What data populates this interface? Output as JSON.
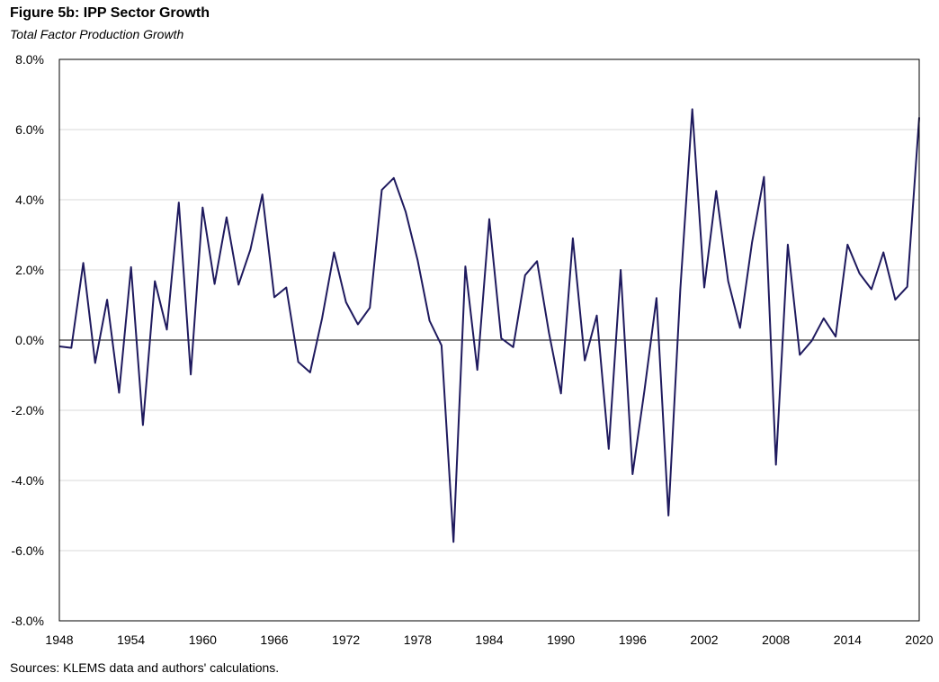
{
  "chart_data": {
    "type": "line",
    "title": "Figure 5b: IPP Sector Growth",
    "subtitle": "Total Factor Production Growth",
    "source": "Sources: KLEMS data and authors' calculations.",
    "xlim": [
      1948,
      2020
    ],
    "ylim": [
      -8.0,
      8.0
    ],
    "y_ticks": [
      8.0,
      6.0,
      4.0,
      2.0,
      0.0,
      -2.0,
      -4.0,
      -6.0,
      -8.0
    ],
    "y_tick_labels": [
      "8.0%",
      "6.0%",
      "4.0%",
      "2.0%",
      "0.0%",
      "-2.0%",
      "-4.0%",
      "-6.0%",
      "-8.0%"
    ],
    "x_ticks": [
      1948,
      1954,
      1960,
      1966,
      1972,
      1978,
      1984,
      1990,
      1996,
      2002,
      2008,
      2014,
      2020
    ],
    "x_tick_labels": [
      "1948",
      "1954",
      "1960",
      "1966",
      "1972",
      "1978",
      "1984",
      "1990",
      "1996",
      "2002",
      "2008",
      "2014",
      "2020"
    ],
    "grid": true,
    "line_color": "#1f1a5e",
    "series": [
      {
        "x": [
          1948,
          1949,
          1950,
          1951,
          1952,
          1953,
          1954,
          1955,
          1956,
          1957,
          1958,
          1959,
          1960,
          1961,
          1962,
          1963,
          1964,
          1965,
          1966,
          1967,
          1968,
          1969,
          1970,
          1971,
          1972,
          1973,
          1974,
          1975,
          1976,
          1977,
          1978,
          1979,
          1980,
          1981,
          1982,
          1983,
          1984,
          1985,
          1986,
          1987,
          1988,
          1989,
          1990,
          1991,
          1992,
          1993,
          1994,
          1995,
          1996,
          1997,
          1998,
          1999,
          2000,
          2001,
          2002,
          2003,
          2004,
          2005,
          2006,
          2007,
          2008,
          2009,
          2010,
          2011,
          2012,
          2013,
          2014,
          2015,
          2016,
          2017,
          2018,
          2019,
          2020
        ],
        "values": [
          -0.18,
          -0.22,
          2.2,
          -0.65,
          1.15,
          -1.5,
          2.08,
          -2.42,
          1.68,
          0.3,
          3.92,
          -0.98,
          3.78,
          1.6,
          3.5,
          1.58,
          2.58,
          4.15,
          1.22,
          1.5,
          -0.62,
          -0.92,
          0.62,
          2.5,
          1.08,
          0.45,
          0.92,
          4.28,
          4.62,
          3.65,
          2.28,
          0.55,
          -0.15,
          -5.75,
          2.1,
          -0.85,
          3.45,
          0.05,
          -0.2,
          1.85,
          2.25,
          0.2,
          -1.52,
          2.9,
          -0.58,
          0.7,
          -3.1,
          2.0,
          -3.82,
          -1.42,
          1.2,
          -5.0,
          1.45,
          6.58,
          1.5,
          4.25,
          1.68,
          0.35,
          2.78,
          4.65,
          -3.55,
          2.72,
          -0.42,
          -0.02,
          0.62,
          0.1,
          2.72,
          1.9,
          1.45,
          2.5,
          1.15,
          1.52,
          6.35
        ]
      }
    ]
  }
}
